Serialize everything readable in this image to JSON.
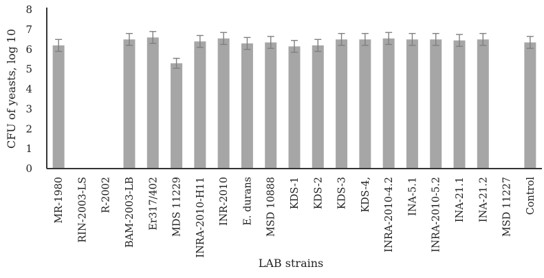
{
  "chart_data": {
    "type": "bar",
    "ylabel": "CFU of yeasts, log 10",
    "xlabel": "LAB strains",
    "ylim": [
      0,
      8
    ],
    "yticks": [
      "0",
      "1",
      "2",
      "3",
      "4",
      "5",
      "6",
      "7",
      "8"
    ],
    "categories": [
      "MR-1980",
      "RIN-2003-LS",
      "R-2002",
      "BAM-2003-LB",
      "Er317/402",
      "MDS 11229",
      "INRA-2010-H11",
      "INR-2010",
      "E. durans",
      "MSD 10888",
      "KDS-1",
      "KDS-2",
      "KDS-3",
      "KDS-4,",
      "INRA-2010-4.2",
      "INA-5.1",
      "INRA-2010-5.2",
      "INA-21.1",
      "INA-21.2",
      "MSD 11227",
      "Control"
    ],
    "values": [
      6.2,
      0,
      0,
      6.5,
      6.6,
      5.3,
      6.4,
      6.55,
      6.3,
      6.35,
      6.15,
      6.2,
      6.5,
      6.5,
      6.55,
      6.5,
      6.5,
      6.45,
      6.5,
      0,
      6.35
    ],
    "errors": [
      0.3,
      0,
      0,
      0.3,
      0.3,
      0.25,
      0.3,
      0.3,
      0.3,
      0.3,
      0.3,
      0.3,
      0.3,
      0.3,
      0.3,
      0.3,
      0.3,
      0.3,
      0.3,
      0,
      0.3
    ],
    "bar_color": "#a6a6a6",
    "error_color": "#7f7f7f",
    "grid": false,
    "legend": "none"
  }
}
